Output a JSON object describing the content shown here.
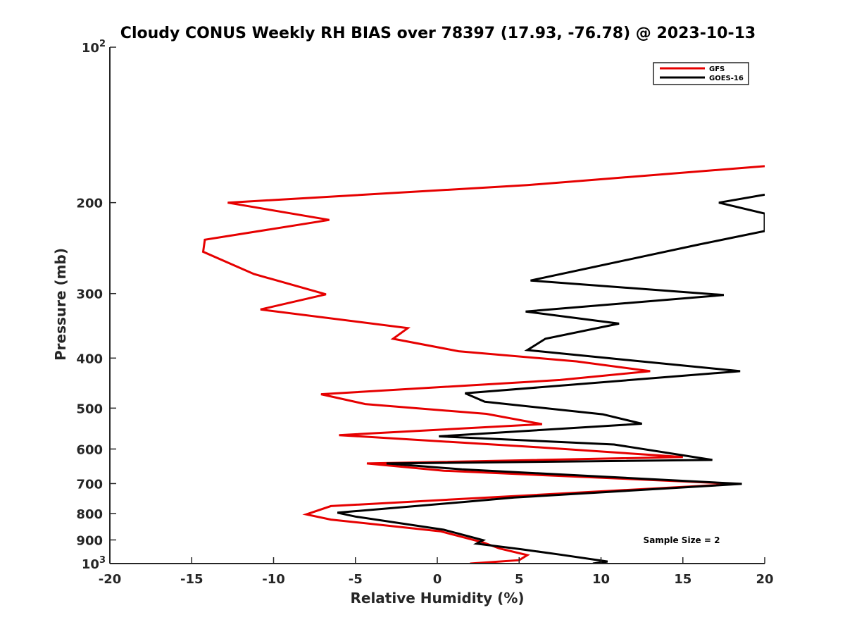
{
  "chart_data": {
    "type": "line",
    "title": "Cloudy CONUS Weekly RH BIAS over 78397 (17.93, -76.78) @ 2023-10-13",
    "xlabel": "Relative Humidity (%)",
    "ylabel": "Pressure (mb)",
    "xlim": [
      -20,
      20
    ],
    "ylim": [
      100,
      1000
    ],
    "y_scale": "log",
    "y_reversed": true,
    "grid": false,
    "legend_position": "top-right",
    "x_ticks": [
      "-20",
      "-15",
      "-10",
      "-5",
      "0",
      "5",
      "10",
      "15",
      "20"
    ],
    "x_tick_values": [
      -20,
      -15,
      -10,
      -5,
      0,
      5,
      10,
      15,
      20
    ],
    "y_ticks": [
      {
        "value": 100,
        "base": "10",
        "exp": "2"
      },
      {
        "value": 200,
        "label": "200"
      },
      {
        "value": 300,
        "label": "300"
      },
      {
        "value": 400,
        "label": "400"
      },
      {
        "value": 500,
        "label": "500"
      },
      {
        "value": 600,
        "label": "600"
      },
      {
        "value": 700,
        "label": "700"
      },
      {
        "value": 800,
        "label": "800"
      },
      {
        "value": 900,
        "label": "900"
      },
      {
        "value": 1000,
        "base": "10",
        "exp": "3"
      }
    ],
    "series": [
      {
        "name": "GFS",
        "color": "#e60000",
        "points": [
          [
            20,
            170
          ],
          [
            5.5,
            185
          ],
          [
            -12.8,
            200
          ],
          [
            -6.6,
            216
          ],
          [
            -14.2,
            236
          ],
          [
            -14.3,
            249
          ],
          [
            -11.2,
            275
          ],
          [
            -6.8,
            301
          ],
          [
            -10.8,
            322
          ],
          [
            -1.8,
            350
          ],
          [
            -2.7,
            367
          ],
          [
            1.3,
            388
          ],
          [
            8.5,
            406
          ],
          [
            13,
            424
          ],
          [
            7.5,
            441
          ],
          [
            -7.1,
            470
          ],
          [
            -4.4,
            491
          ],
          [
            3.0,
            513
          ],
          [
            6.4,
            537
          ],
          [
            -6.0,
            564
          ],
          [
            5.7,
            594
          ],
          [
            15.0,
            622
          ],
          [
            -4.3,
            640
          ],
          [
            0.4,
            661
          ],
          [
            18.4,
            701
          ],
          [
            1.4,
            750
          ],
          [
            -6.5,
            774
          ],
          [
            -8.0,
            803
          ],
          [
            -6.5,
            822
          ],
          [
            0.2,
            866
          ],
          [
            2.8,
            910
          ],
          [
            3.8,
            935
          ],
          [
            5.5,
            963
          ],
          [
            5.0,
            985
          ],
          [
            2.0,
            1000
          ]
        ]
      },
      {
        "name": "GOES-16",
        "color": "#000000",
        "points": [
          [
            20,
            193
          ],
          [
            17.2,
            200
          ],
          [
            20,
            210
          ],
          [
            20,
            227
          ],
          [
            16.0,
            241
          ],
          [
            5.7,
            283
          ],
          [
            17.5,
            302
          ],
          [
            5.4,
            325
          ],
          [
            11.1,
            343
          ],
          [
            6.6,
            367
          ],
          [
            5.5,
            386
          ],
          [
            18.5,
            424
          ],
          [
            1.7,
            468
          ],
          [
            2.9,
            486
          ],
          [
            10.1,
            514
          ],
          [
            12.5,
            536
          ],
          [
            0.1,
            567
          ],
          [
            10.8,
            588
          ],
          [
            16.8,
            630
          ],
          [
            -3.1,
            640
          ],
          [
            1.5,
            657
          ],
          [
            18.6,
            701
          ],
          [
            4.7,
            745
          ],
          [
            1.6,
            760
          ],
          [
            -6.1,
            797
          ],
          [
            -5.0,
            811
          ],
          [
            0.4,
            860
          ],
          [
            2.8,
            901
          ],
          [
            2.4,
            915
          ],
          [
            5.1,
            938
          ],
          [
            7.5,
            961
          ],
          [
            10.4,
            991
          ],
          [
            9.5,
            1000
          ]
        ]
      }
    ],
    "annotation": "Sample Size = 2"
  }
}
